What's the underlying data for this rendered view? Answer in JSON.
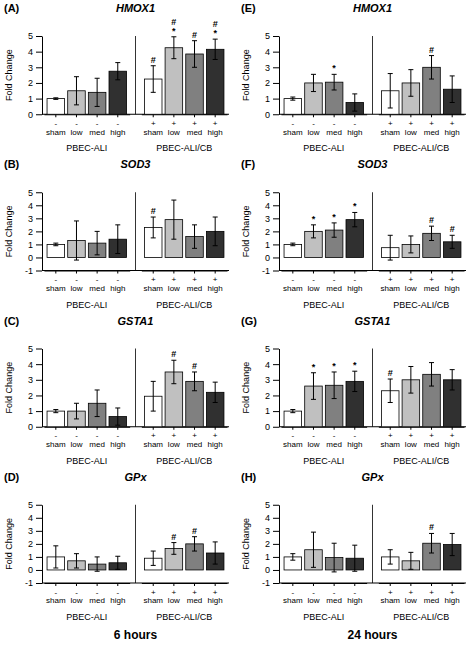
{
  "chart_data": [
    {
      "type": "bar",
      "panel_label": "(A)",
      "title": "HMOX1",
      "ylabel": "Fold Change",
      "categories": [
        "-\nsham",
        "-\nlow",
        "-\nmed",
        "-\nhigh",
        "+\nsham",
        "+\nlow",
        "+\nmed",
        "+\nhigh"
      ],
      "group_labels": [
        "PBEC-ALI",
        "PBEC-ALI/CB"
      ],
      "values": [
        1.0,
        1.5,
        1.4,
        2.75,
        2.25,
        4.25,
        3.85,
        4.15
      ],
      "errors": [
        0.05,
        0.9,
        0.9,
        0.55,
        0.85,
        0.7,
        0.85,
        0.65
      ],
      "annotations": [
        [],
        [],
        [],
        [],
        [
          "#"
        ],
        [
          "*",
          "#"
        ],
        [
          "#"
        ],
        [
          "*",
          "#"
        ]
      ],
      "colors": [
        "white",
        "#c0c0c0",
        "#808080",
        "#303030",
        "white",
        "#c0c0c0",
        "#808080",
        "#303030"
      ],
      "ylim": [
        0,
        5
      ],
      "yticks": [
        0,
        1,
        2,
        3,
        4,
        5
      ]
    },
    {
      "type": "bar",
      "panel_label": "(B)",
      "title": "SOD3",
      "ylabel": "Fold Change",
      "categories": [
        "-\nsham",
        "-\nlow",
        "-\nmed",
        "-\nhigh",
        "+\nsham",
        "+\nlow",
        "+\nmed",
        "+\nhigh"
      ],
      "group_labels": [
        "PBEC-ALI",
        "PBEC-ALI/CB"
      ],
      "values": [
        1.0,
        1.3,
        1.1,
        1.4,
        2.3,
        2.9,
        1.6,
        2.0
      ],
      "errors": [
        0.1,
        1.5,
        0.9,
        1.1,
        0.8,
        1.5,
        0.9,
        1.1
      ],
      "annotations": [
        [],
        [],
        [],
        [],
        [
          "#"
        ],
        [],
        [],
        []
      ],
      "colors": [
        "white",
        "#c0c0c0",
        "#808080",
        "#303030",
        "white",
        "#c0c0c0",
        "#808080",
        "#303030"
      ],
      "ylim": [
        -1,
        5
      ],
      "yticks": [
        -1,
        0,
        1,
        2,
        3,
        4,
        5
      ]
    },
    {
      "type": "bar",
      "panel_label": "(C)",
      "title": "GSTA1",
      "ylabel": "Fold Change",
      "categories": [
        "-\nsham",
        "-\nlow",
        "-\nmed",
        "-\nhigh",
        "+\nsham",
        "+\nlow",
        "+\nmed",
        "+\nhigh"
      ],
      "group_labels": [
        "PBEC-ALI",
        "PBEC-ALI/CB"
      ],
      "values": [
        1.0,
        1.0,
        1.5,
        0.65,
        1.95,
        3.5,
        2.9,
        2.2
      ],
      "errors": [
        0.1,
        0.5,
        0.85,
        0.55,
        0.95,
        0.75,
        0.6,
        0.65
      ],
      "annotations": [
        [],
        [],
        [],
        [],
        [],
        [
          "#"
        ],
        [
          "#"
        ],
        []
      ],
      "colors": [
        "white",
        "#c0c0c0",
        "#808080",
        "#303030",
        "white",
        "#c0c0c0",
        "#808080",
        "#303030"
      ],
      "ylim": [
        0,
        5
      ],
      "yticks": [
        0,
        1,
        2,
        3,
        4,
        5
      ]
    },
    {
      "type": "bar",
      "panel_label": "(D)",
      "title": "GPx",
      "ylabel": "Fold Change",
      "xlabel": "6 hours",
      "categories": [
        "-\nsham",
        "-\nlow",
        "-\nmed",
        "-\nhigh",
        "+\nsham",
        "+\nlow",
        "+\nmed",
        "+\nhigh"
      ],
      "group_labels": [
        "PBEC-ALI",
        "PBEC-ALI/CB"
      ],
      "values": [
        1.0,
        0.7,
        0.45,
        0.55,
        0.9,
        1.65,
        2.0,
        1.3
      ],
      "errors": [
        0.85,
        0.55,
        0.55,
        0.5,
        0.55,
        0.45,
        0.55,
        0.85
      ],
      "annotations": [
        [],
        [],
        [],
        [],
        [],
        [
          "#"
        ],
        [
          "#"
        ],
        []
      ],
      "colors": [
        "white",
        "#c0c0c0",
        "#808080",
        "#303030",
        "white",
        "#c0c0c0",
        "#808080",
        "#303030"
      ],
      "ylim": [
        -1,
        5
      ],
      "yticks": [
        -1,
        0,
        1,
        2,
        3,
        4,
        5
      ]
    },
    {
      "type": "bar",
      "panel_label": "(E)",
      "title": "HMOX1",
      "ylabel": "Fold Change",
      "categories": [
        "-\nsham",
        "-\nlow",
        "-\nmed",
        "-\nhigh",
        "+\nsham",
        "+\nlow",
        "+\nmed",
        "+\nhigh"
      ],
      "group_labels": [
        "PBEC-ALI",
        "PBEC-ALI/CB"
      ],
      "values": [
        1.0,
        2.0,
        2.05,
        0.75,
        1.5,
        2.0,
        3.0,
        1.6
      ],
      "errors": [
        0.1,
        0.55,
        0.5,
        0.55,
        1.1,
        0.85,
        0.75,
        0.85
      ],
      "annotations": [
        [],
        [],
        [
          "*"
        ],
        [],
        [],
        [],
        [
          "#"
        ],
        []
      ],
      "colors": [
        "white",
        "#c0c0c0",
        "#808080",
        "#303030",
        "white",
        "#c0c0c0",
        "#808080",
        "#303030"
      ],
      "ylim": [
        0,
        5
      ],
      "yticks": [
        0,
        1,
        2,
        3,
        4,
        5
      ]
    },
    {
      "type": "bar",
      "panel_label": "(F)",
      "title": "SOD3",
      "ylabel": "Fold Change",
      "categories": [
        "-\nsham",
        "-\nlow",
        "-\nmed",
        "-\nhigh",
        "+\nsham",
        "+\nlow",
        "+\nmed",
        "+\nhigh"
      ],
      "group_labels": [
        "PBEC-ALI",
        "PBEC-ALI/CB"
      ],
      "values": [
        1.0,
        2.0,
        2.1,
        2.9,
        0.75,
        1.0,
        1.85,
        1.2
      ],
      "errors": [
        0.1,
        0.5,
        0.55,
        0.55,
        0.95,
        0.65,
        0.55,
        0.5
      ],
      "annotations": [
        [],
        [
          "*"
        ],
        [
          "*"
        ],
        [
          "*"
        ],
        [],
        [],
        [
          "#"
        ],
        [
          "#"
        ]
      ],
      "colors": [
        "white",
        "#c0c0c0",
        "#808080",
        "#303030",
        "white",
        "#c0c0c0",
        "#808080",
        "#303030"
      ],
      "ylim": [
        -1,
        5
      ],
      "yticks": [
        -1,
        0,
        1,
        2,
        3,
        4,
        5
      ]
    },
    {
      "type": "bar",
      "panel_label": "(G)",
      "title": "GSTA1",
      "ylabel": "Fold Change",
      "categories": [
        "-\nsham",
        "-\nlow",
        "-\nmed",
        "-\nhigh",
        "+\nsham",
        "+\nlow",
        "+\nmed",
        "+\nhigh"
      ],
      "group_labels": [
        "PBEC-ALI",
        "PBEC-ALI/CB"
      ],
      "values": [
        1.0,
        2.6,
        2.65,
        2.9,
        2.3,
        3.0,
        3.35,
        3.0
      ],
      "errors": [
        0.1,
        0.85,
        0.85,
        0.65,
        0.75,
        0.85,
        0.75,
        0.65
      ],
      "annotations": [
        [],
        [
          "*"
        ],
        [
          "*"
        ],
        [
          "*"
        ],
        [
          "#"
        ],
        [],
        [],
        []
      ],
      "colors": [
        "white",
        "#c0c0c0",
        "#808080",
        "#303030",
        "white",
        "#c0c0c0",
        "#808080",
        "#303030"
      ],
      "ylim": [
        0,
        5
      ],
      "yticks": [
        0,
        1,
        2,
        3,
        4,
        5
      ]
    },
    {
      "type": "bar",
      "panel_label": "(H)",
      "title": "GPx",
      "ylabel": "Fold Change",
      "xlabel": "24 hours",
      "categories": [
        "-\nsham",
        "-\nlow",
        "-\nmed",
        "-\nhigh",
        "+\nsham",
        "+\nlow",
        "+\nmed",
        "+\nhigh"
      ],
      "group_labels": [
        "PBEC-ALI",
        "PBEC-ALI/CB"
      ],
      "values": [
        1.0,
        1.55,
        0.95,
        0.9,
        1.0,
        0.7,
        2.05,
        1.95
      ],
      "errors": [
        0.25,
        1.35,
        1.1,
        1.0,
        0.55,
        0.65,
        0.75,
        0.85
      ],
      "annotations": [
        [],
        [],
        [],
        [],
        [],
        [],
        [
          "#"
        ],
        []
      ],
      "colors": [
        "white",
        "#c0c0c0",
        "#808080",
        "#303030",
        "white",
        "#c0c0c0",
        "#808080",
        "#303030"
      ],
      "ylim": [
        -1,
        5
      ],
      "yticks": [
        -1,
        0,
        1,
        2,
        3,
        4,
        5
      ]
    }
  ]
}
